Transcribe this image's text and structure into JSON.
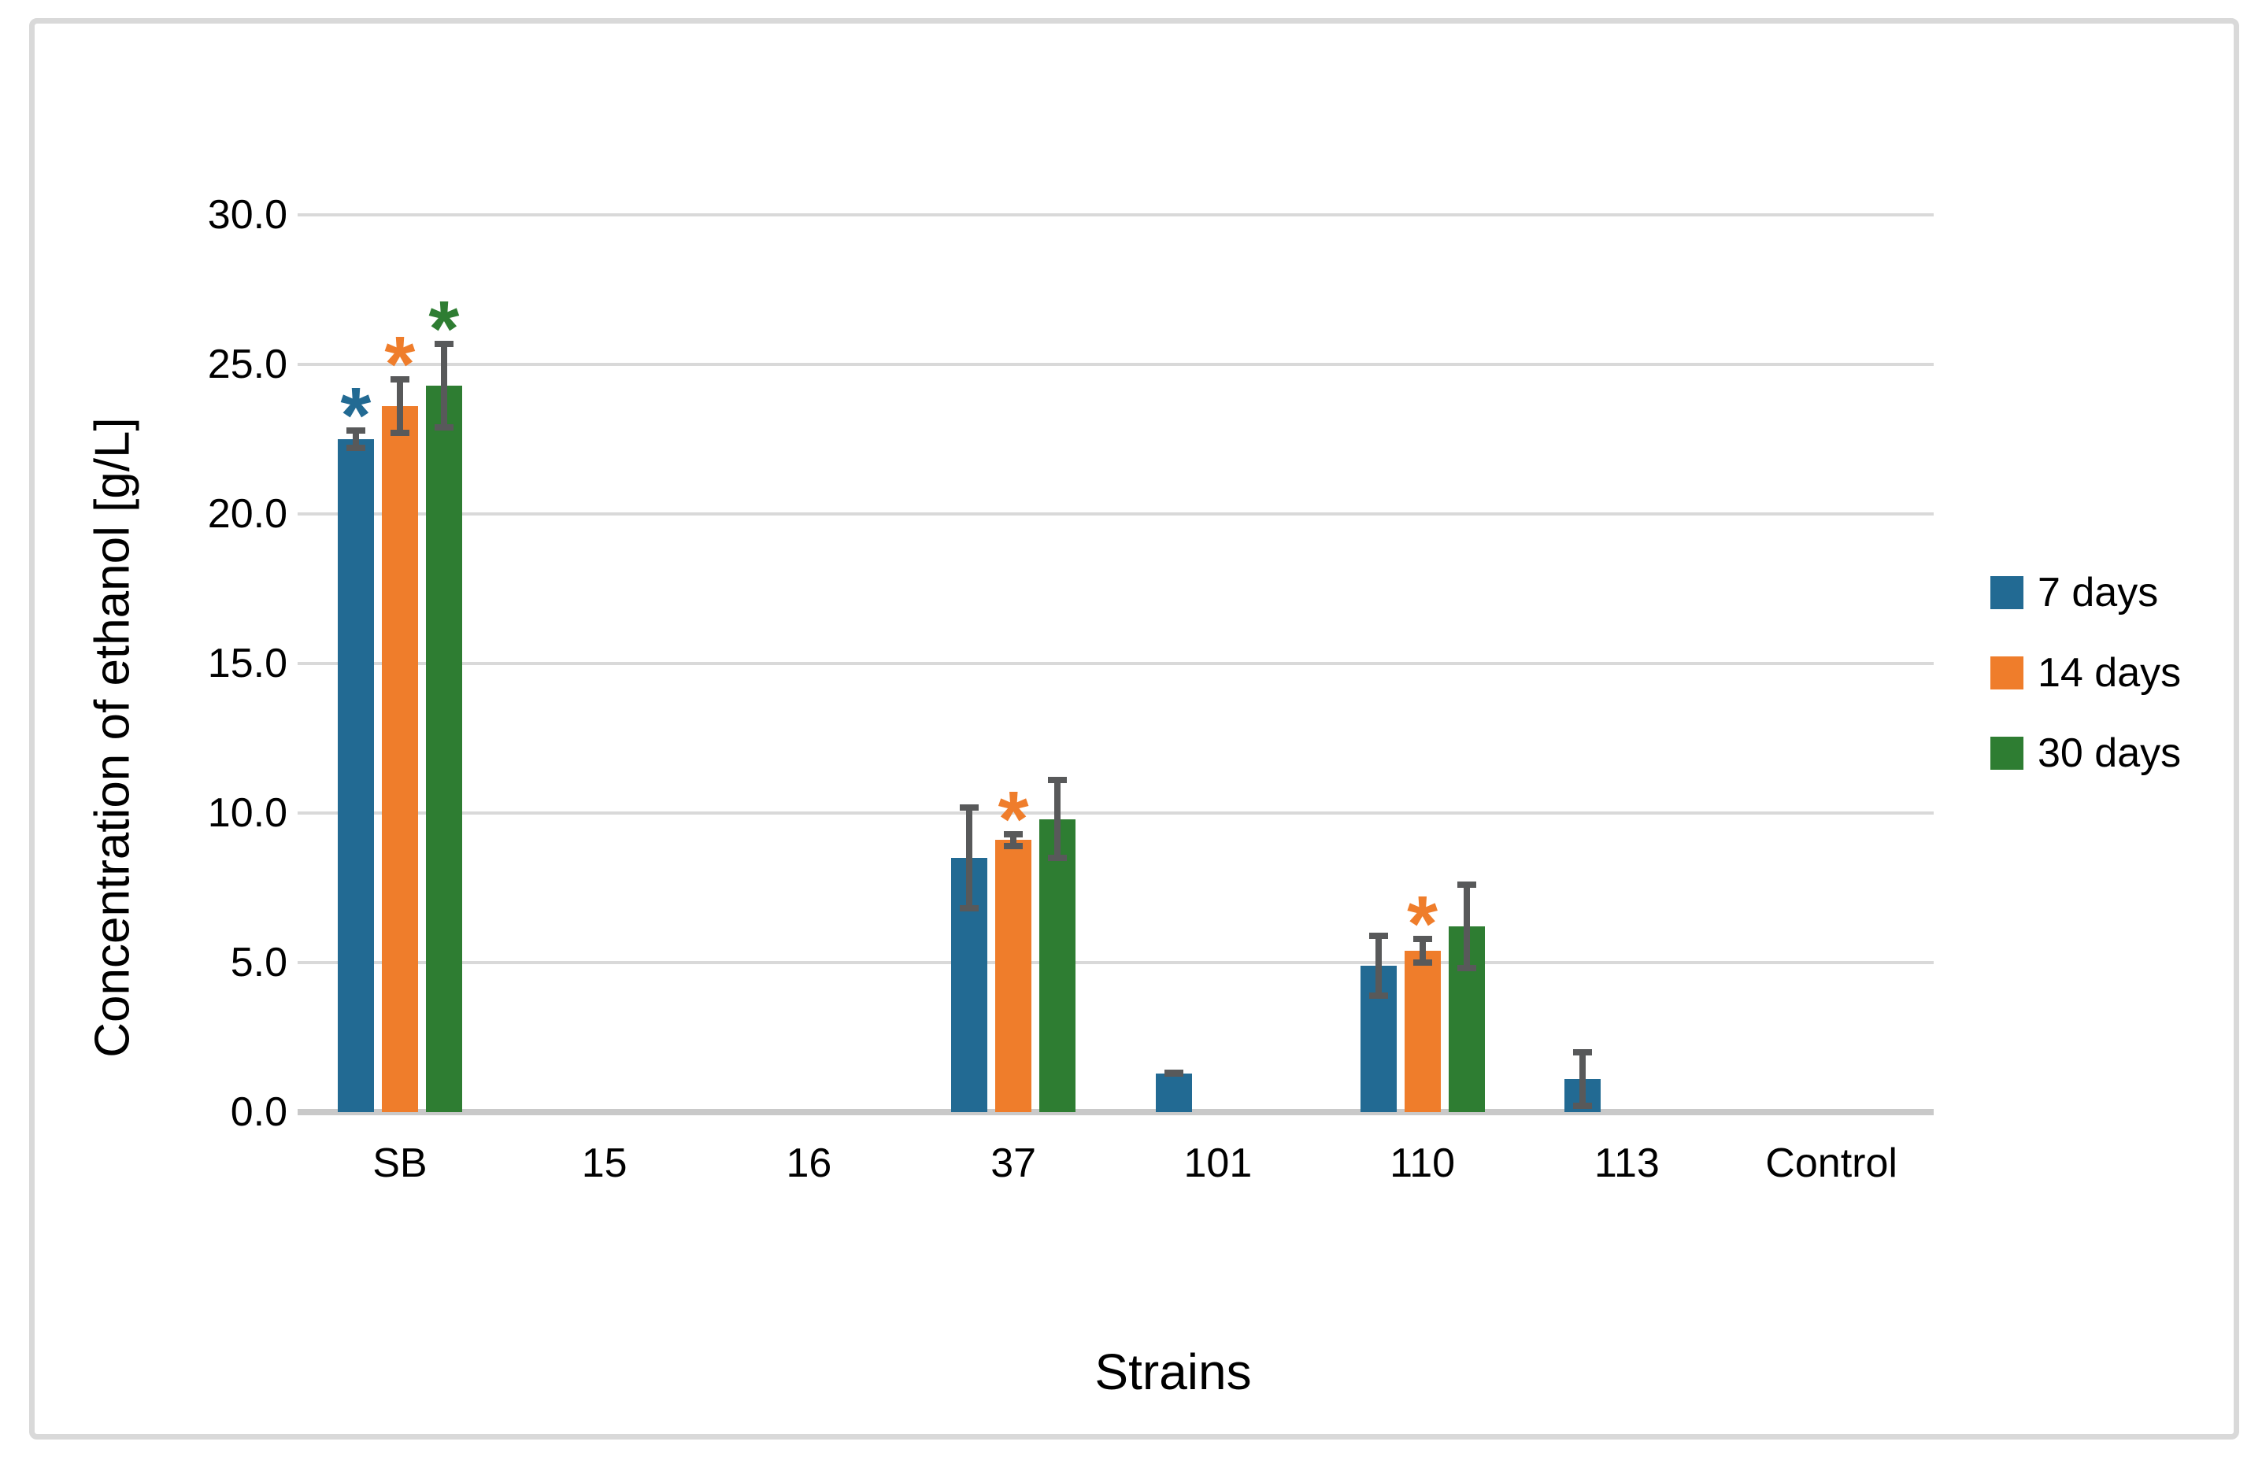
{
  "figure": {
    "background": "#ffffff",
    "border_color": "#d9d9d9"
  },
  "chart_data": {
    "type": "bar",
    "title": "",
    "xlabel": "Strains",
    "ylabel": "Concentration of ethanol [g/L]",
    "categories": [
      "SB",
      "15",
      "16",
      "37",
      "101",
      "110",
      "113",
      "Control"
    ],
    "y_ticks": [
      "0.0",
      "5.0",
      "10.0",
      "15.0",
      "20.0",
      "25.0",
      "30.0"
    ],
    "ylim": [
      0,
      30
    ],
    "grid": true,
    "legend_position": "right",
    "significance_marker": "*",
    "gridline_color": "#d9d9d9",
    "baseline_color": "#c9c9c9",
    "error_bar_color": "#58595a",
    "series": [
      {
        "name": "7 days",
        "color": "#226a93",
        "values": [
          22.5,
          0,
          0,
          8.5,
          1.3,
          4.9,
          1.1,
          0
        ],
        "errors": [
          0.4,
          0,
          0,
          1.8,
          0.1,
          1.1,
          1.0,
          0
        ],
        "significant": [
          true,
          false,
          false,
          false,
          false,
          false,
          false,
          false
        ]
      },
      {
        "name": "14 days",
        "color": "#ef7d2b",
        "values": [
          23.6,
          0,
          0,
          9.1,
          0,
          5.4,
          0,
          0
        ],
        "errors": [
          1.0,
          0,
          0,
          0.3,
          0,
          0.5,
          0,
          0
        ],
        "significant": [
          true,
          false,
          false,
          true,
          false,
          true,
          false,
          false
        ]
      },
      {
        "name": "30 days",
        "color": "#2e7d32",
        "values": [
          24.3,
          0,
          0,
          9.8,
          0,
          6.2,
          0,
          0
        ],
        "errors": [
          1.5,
          0,
          0,
          1.4,
          0,
          1.5,
          0,
          0
        ],
        "significant": [
          true,
          false,
          false,
          false,
          false,
          false,
          false,
          false
        ]
      }
    ]
  }
}
